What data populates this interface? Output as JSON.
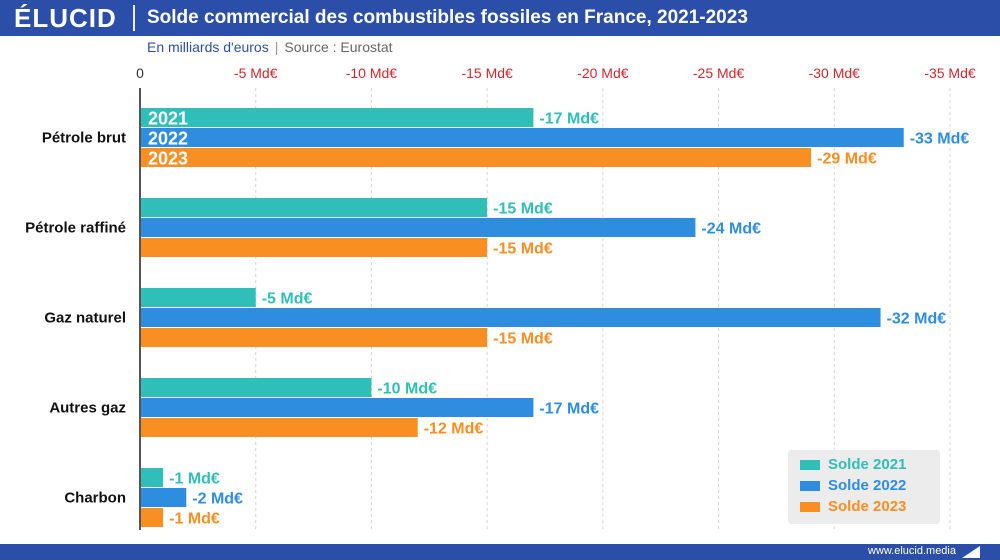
{
  "header": {
    "logo": "ÉLUCID",
    "title": "Solde commercial des combustibles fossiles en France, 2021-2023"
  },
  "subtitle": {
    "unit": "En milliards d'euros",
    "separator": "|",
    "source": "Source : Eurostat"
  },
  "footer": {
    "url": "www.elucid.media"
  },
  "colors": {
    "s2021": "#2fbfb8",
    "s2022": "#2f8de0",
    "s2023": "#f98e22",
    "ticks": "#d0282e"
  },
  "chart_data": {
    "type": "bar",
    "orientation": "horizontal",
    "categories": [
      "Pétrole brut",
      "Pétrole raffiné",
      "Gaz naturel",
      "Autres gaz",
      "Charbon"
    ],
    "series": [
      {
        "name": "Solde 2021",
        "year_label": "2021",
        "values": [
          -17,
          -15,
          -5,
          -10,
          -1
        ],
        "labels": [
          "-17 Md€",
          "-15 Md€",
          "-5 Md€",
          "-10 Md€",
          "-1 Md€"
        ]
      },
      {
        "name": "Solde 2022",
        "year_label": "2022",
        "values": [
          -33,
          -24,
          -32,
          -17,
          -2
        ],
        "labels": [
          "-33 Md€",
          "-24 Md€",
          "-32 Md€",
          "-17 Md€",
          "-2 Md€"
        ]
      },
      {
        "name": "Solde 2023",
        "year_label": "2023",
        "values": [
          -29,
          -15,
          -15,
          -12,
          -1
        ],
        "labels": [
          "-29 Md€",
          "-15 Md€",
          "-15 Md€",
          "-12 Md€",
          "-1 Md€"
        ]
      }
    ],
    "ticks": [
      0,
      -5,
      -10,
      -15,
      -20,
      -25,
      -30,
      -35
    ],
    "tick_labels": [
      "0",
      "-5 Md€",
      "-10 Md€",
      "-15 Md€",
      "-20 Md€",
      "-25 Md€",
      "-30 Md€",
      "-35 Md€"
    ],
    "xlim": [
      0,
      -35
    ],
    "axis_position": "top",
    "grid": true,
    "legend_position": "bottom-right"
  }
}
